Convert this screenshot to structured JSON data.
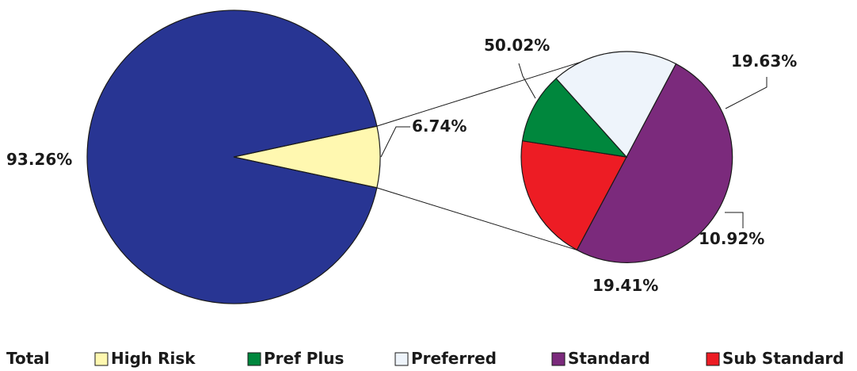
{
  "chart_data": [
    {
      "type": "pie",
      "name": "Total",
      "slices": [
        {
          "label": "93.26%",
          "value": 93.26,
          "color": "#283593"
        },
        {
          "label": "6.74%",
          "value": 6.74,
          "color": "#fff8b0"
        }
      ]
    },
    {
      "type": "pie",
      "name": "High Risk",
      "slices": [
        {
          "label": "50.02%",
          "value": 50.02,
          "color": "#7b2a7c"
        },
        {
          "label": "19.63%",
          "value": 19.63,
          "color": "#ed1c24"
        },
        {
          "label": "10.92%",
          "value": 10.92,
          "color": "#00873d"
        },
        {
          "label": "19.41%",
          "value": 19.41,
          "color": "#eef4fb"
        }
      ]
    }
  ],
  "legend": {
    "items": [
      {
        "label": "Total",
        "color": ""
      },
      {
        "label": "High Risk",
        "color": "#fff8b0"
      },
      {
        "label": "Pref Plus",
        "color": "#00873d"
      },
      {
        "label": "Preferred",
        "color": "#eef4fb"
      },
      {
        "label": "Standard",
        "color": "#7b2a7c"
      },
      {
        "label": "Sub Standard",
        "color": "#ed1c24"
      }
    ]
  }
}
